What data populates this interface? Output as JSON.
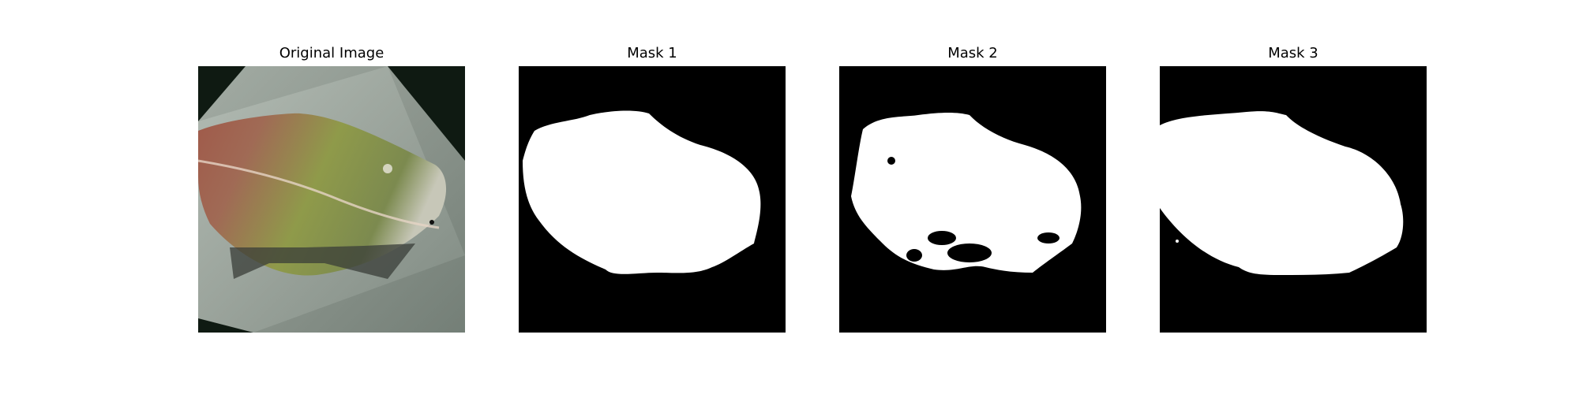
{
  "figure": {
    "background": "#ffffff",
    "panels": [
      {
        "title": "Original Image",
        "kind": "photo",
        "content": "leaf"
      },
      {
        "title": "Mask 1",
        "kind": "mask",
        "content": "leaf-mask"
      },
      {
        "title": "Mask 2",
        "kind": "mask",
        "content": "leaf-mask"
      },
      {
        "title": "Mask 3",
        "kind": "mask",
        "content": "leaf-mask"
      }
    ],
    "colors": {
      "mask_background": "#000000",
      "mask_foreground": "#ffffff",
      "photo_background": "#9aa39b",
      "photo_corner": "#0f1a12",
      "leaf_green": "#8f9a4a",
      "leaf_red": "#a05a4a"
    }
  }
}
